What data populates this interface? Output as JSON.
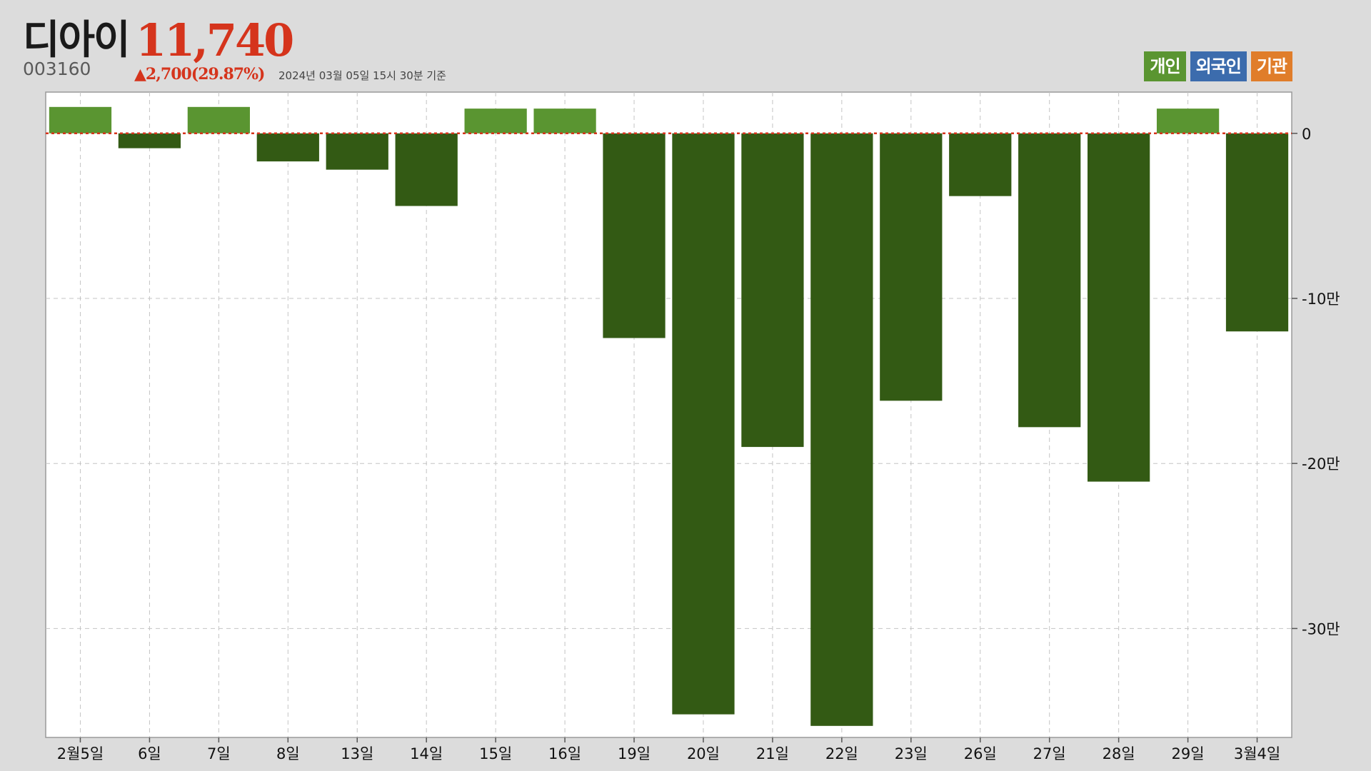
{
  "stock": {
    "name": "디아이",
    "price": "11,740",
    "code": "003160",
    "change": "▲2,700(29.87%)",
    "timestamp": "2024년 03월 05일 15시 30분 기준"
  },
  "legend": [
    {
      "label": "개인",
      "color": "#5a9531"
    },
    {
      "label": "외국인",
      "color": "#3c6cad"
    },
    {
      "label": "기관",
      "color": "#e07d2a"
    }
  ],
  "chart_data": {
    "type": "bar",
    "categories": [
      "2월5일",
      "6일",
      "7일",
      "8일",
      "13일",
      "14일",
      "15일",
      "16일",
      "19일",
      "20일",
      "21일",
      "22일",
      "23일",
      "26일",
      "27일",
      "28일",
      "29일",
      "3월4일"
    ],
    "series": [
      {
        "name": "개인",
        "values": [
          16000,
          -9000,
          16000,
          -17000,
          -22000,
          -44000,
          15000,
          15000,
          -124000,
          -352000,
          -190000,
          -359000,
          -162000,
          -38000,
          -178000,
          -211000,
          15000,
          -120000
        ]
      }
    ],
    "yticks": [
      {
        "value": 0,
        "label": "0"
      },
      {
        "value": -100000,
        "label": "-10만"
      },
      {
        "value": -200000,
        "label": "-20만"
      },
      {
        "value": -300000,
        "label": "-30만"
      }
    ],
    "ylim": [
      -366000,
      25000
    ],
    "colors": {
      "positive": "#5a9531",
      "negative": "#335a14",
      "zero_line": "#d5341c"
    },
    "grid": true
  }
}
